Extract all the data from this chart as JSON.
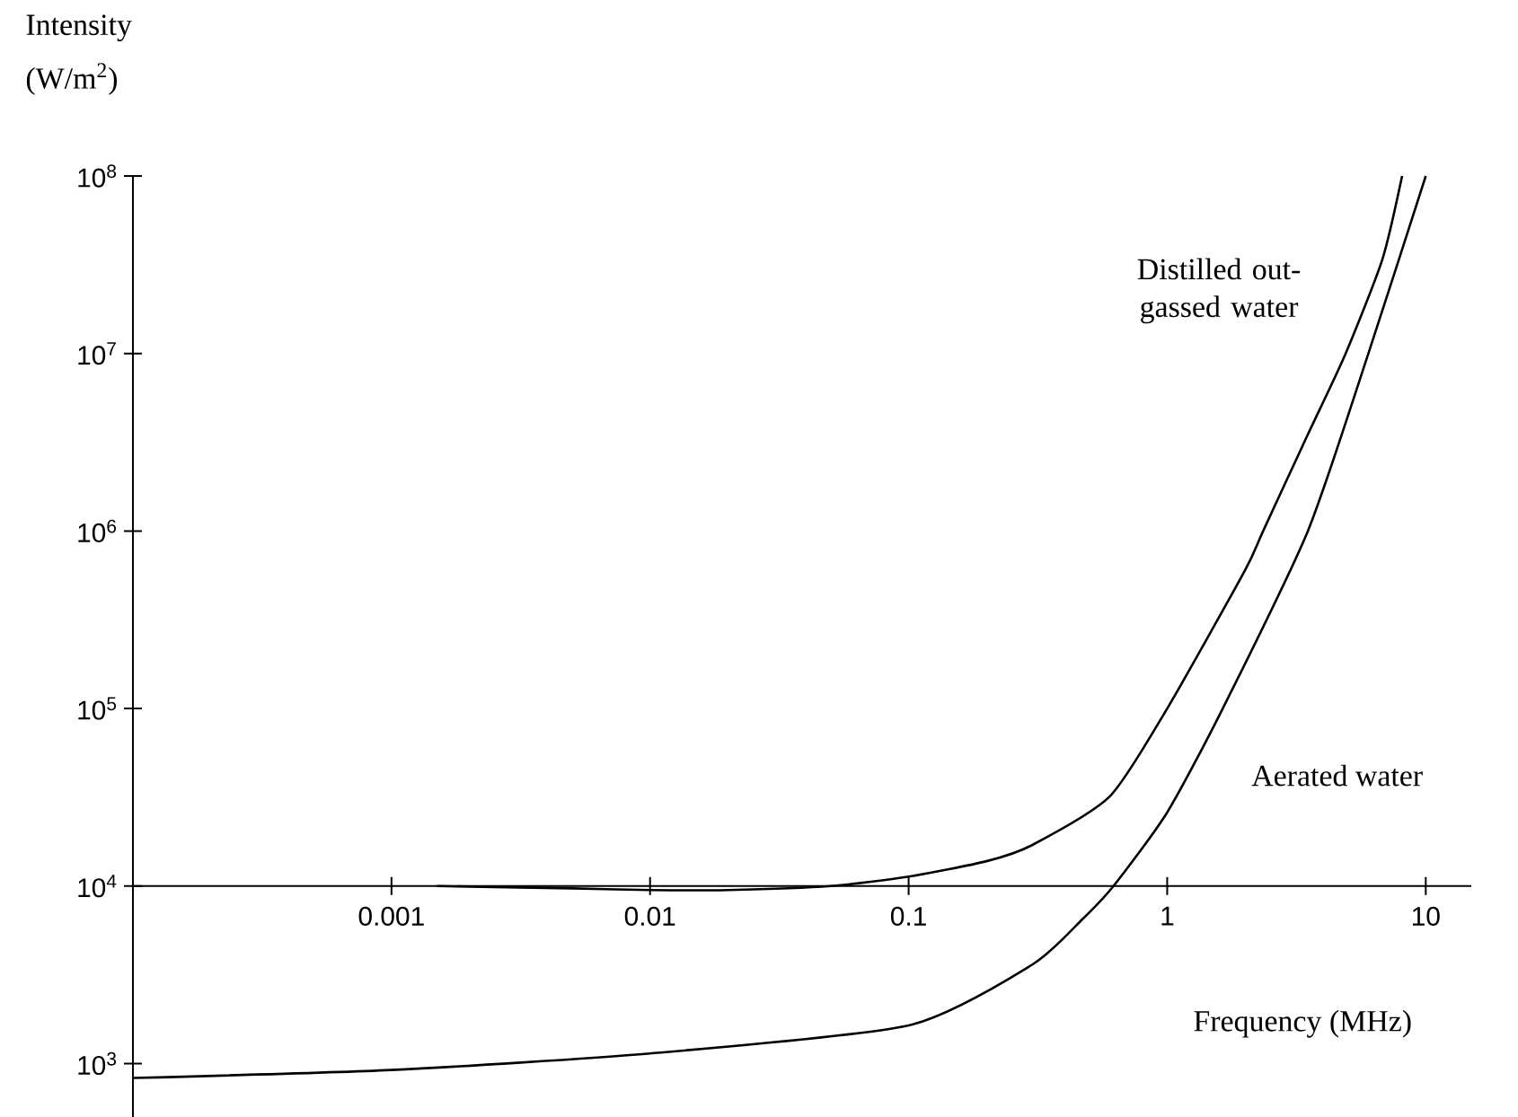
{
  "chart_data": {
    "type": "line",
    "xlabel": "Frequency (MHz)",
    "ylabel": "Intensity (W/m$^{2}$)",
    "log": "xy",
    "xlim": [
      0.0001,
      15
    ],
    "ylim": [
      500,
      100000000
    ],
    "xticks": [
      0.001,
      0.01,
      0.1,
      1,
      10
    ],
    "yticks": [
      {
        "value": 1000,
        "label": "10$^{3}$"
      },
      {
        "value": 10000,
        "label": "10$^{4}$"
      },
      {
        "value": 100000,
        "label": "10$^{5}$"
      },
      {
        "value": 1000000,
        "label": "10$^{6}$"
      },
      {
        "value": 10000000,
        "label": "10$^{7}$"
      },
      {
        "value": 100000000,
        "label": "10$^{8}$"
      }
    ],
    "marker": "none",
    "line_style": "solid",
    "series": [
      {
        "name": "Distilled out-gassed water",
        "color": "#000000",
        "x": [
          0.0015,
          0.005,
          0.01,
          0.02,
          0.05,
          0.1,
          0.2,
          0.3,
          0.6,
          1,
          2,
          2.35,
          3.5,
          4.9,
          6.8,
          8.1
        ],
        "values": [
          10000,
          9700,
          9500,
          9500,
          10000,
          11300,
          13800,
          17000,
          32000,
          100000,
          600000,
          1000000,
          3500000,
          10000000,
          34000000,
          100000000
        ]
      },
      {
        "name": "Aerated water",
        "color": "#000000",
        "x": [
          0.0001,
          0.001,
          0.01,
          0.1,
          0.3,
          0.47,
          0.62,
          1,
          1.64,
          3.5,
          6,
          10
        ],
        "values": [
          830,
          920,
          1140,
          1640,
          3600,
          6500,
          10000,
          26000,
          100000,
          1000000,
          10000000,
          100000000
        ]
      }
    ]
  }
}
